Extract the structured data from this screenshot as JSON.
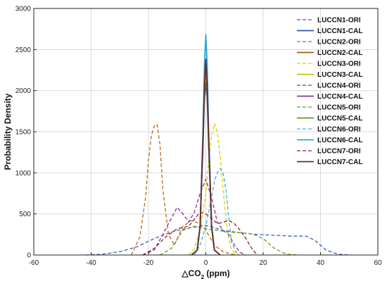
{
  "chart_data": {
    "type": "line",
    "title": "",
    "xlabel": "△CO",
    "xlabel_sub": "2",
    "xlabel_suffix": " (ppm)",
    "ylabel": "Probability Density",
    "xlim": [
      -60,
      60
    ],
    "ylim": [
      0,
      3000
    ],
    "xticks": [
      -60,
      -40,
      -20,
      0,
      20,
      40,
      60
    ],
    "yticks": [
      0,
      500,
      1000,
      1500,
      2000,
      2500,
      3000
    ],
    "xtick_labels": [
      "-60",
      "-40",
      "-20",
      "0",
      "20",
      "40",
      "60"
    ],
    "ytick_labels": [
      "0",
      "500",
      "1000",
      "1500",
      "2000",
      "2500",
      "3000"
    ],
    "grid": true,
    "legend_position": "top-right",
    "series": [
      {
        "name": "LUCCN1-ORI",
        "color": "#3b5fc0",
        "dash": true,
        "x": [
          -42,
          -36,
          -30,
          -24,
          -18,
          -12,
          -6,
          0,
          6,
          12,
          18,
          24,
          30,
          35,
          38,
          42,
          46,
          50
        ],
        "y": [
          0,
          10,
          40,
          100,
          200,
          280,
          330,
          360,
          300,
          270,
          250,
          240,
          230,
          230,
          180,
          60,
          10,
          0
        ]
      },
      {
        "name": "LUCCN1-CAL",
        "color": "#2f4fb0",
        "dash": false,
        "x": [
          -5,
          -3,
          -2,
          -1,
          -0.5,
          0,
          0.5,
          1,
          2,
          3,
          5
        ],
        "y": [
          0,
          60,
          350,
          1300,
          1900,
          2100,
          1900,
          1300,
          350,
          60,
          0
        ]
      },
      {
        "name": "LUCCN2-ORI",
        "color": "#c06a10",
        "dash": true,
        "x": [
          -26,
          -23,
          -21,
          -20,
          -19,
          -18,
          -17,
          -16,
          -15,
          -13,
          -11,
          -8,
          -5,
          -2,
          0,
          3,
          6,
          9,
          12,
          15
        ],
        "y": [
          0,
          220,
          700,
          1150,
          1450,
          1570,
          1590,
          1350,
          800,
          250,
          120,
          350,
          420,
          380,
          300,
          120,
          40,
          10,
          0,
          0
        ]
      },
      {
        "name": "LUCCN2-CAL",
        "color": "#a55a12",
        "dash": false,
        "x": [
          -5,
          -3,
          -2,
          -1,
          -0.5,
          0,
          0.5,
          1,
          2,
          3,
          5
        ],
        "y": [
          0,
          60,
          350,
          1400,
          2000,
          2300,
          2000,
          1400,
          350,
          60,
          0
        ]
      },
      {
        "name": "LUCCN3-ORI",
        "color": "#d6d300",
        "dash": true,
        "x": [
          -6,
          -4,
          -2,
          0,
          1,
          2,
          3,
          4,
          5,
          6,
          7,
          8,
          9,
          11
        ],
        "y": [
          0,
          80,
          300,
          750,
          1150,
          1450,
          1600,
          1500,
          1200,
          800,
          450,
          200,
          60,
          0
        ]
      },
      {
        "name": "LUCCN3-CAL",
        "color": "#c8c800",
        "dash": false,
        "x": [
          -5,
          -3,
          -2,
          -1,
          -0.5,
          0,
          0.5,
          1,
          2,
          3,
          5
        ],
        "y": [
          0,
          60,
          350,
          1400,
          2000,
          2250,
          2000,
          1400,
          350,
          60,
          0
        ]
      },
      {
        "name": "LUCCN4-ORI",
        "color": "#8a2ca0",
        "dash": true,
        "x": [
          -22,
          -18,
          -15,
          -12,
          -10,
          -8,
          -6,
          -4,
          -2,
          0,
          2,
          4,
          6,
          8,
          10,
          12,
          14
        ],
        "y": [
          0,
          60,
          250,
          450,
          580,
          500,
          400,
          520,
          750,
          920,
          700,
          400,
          300,
          250,
          120,
          30,
          0
        ]
      },
      {
        "name": "LUCCN4-CAL",
        "color": "#7a3aa8",
        "dash": false,
        "x": [
          -5,
          -3,
          -2,
          -1,
          -0.5,
          0,
          0.5,
          1,
          2,
          3,
          5
        ],
        "y": [
          0,
          60,
          350,
          1400,
          2000,
          2350,
          2000,
          1400,
          350,
          60,
          0
        ]
      },
      {
        "name": "LUCCN5-ORI",
        "color": "#6aa020",
        "dash": true,
        "x": [
          -16,
          -12,
          -8,
          -4,
          0,
          4,
          8,
          12,
          16,
          20,
          24,
          28,
          32
        ],
        "y": [
          0,
          80,
          300,
          350,
          320,
          300,
          280,
          270,
          260,
          200,
          80,
          10,
          0
        ]
      },
      {
        "name": "LUCCN5-CAL",
        "color": "#5c9a1c",
        "dash": false,
        "x": [
          -5,
          -3,
          -2,
          -1,
          -0.5,
          0,
          0.5,
          1,
          2,
          3,
          5
        ],
        "y": [
          0,
          60,
          350,
          1400,
          2000,
          2300,
          2000,
          1400,
          350,
          60,
          0
        ]
      },
      {
        "name": "LUCCN6-ORI",
        "color": "#3fb0e0",
        "dash": true,
        "x": [
          -4,
          -2,
          0,
          2,
          3,
          4,
          5,
          6,
          7,
          8,
          9,
          11
        ],
        "y": [
          0,
          120,
          350,
          700,
          900,
          1000,
          1050,
          1000,
          800,
          450,
          150,
          0
        ]
      },
      {
        "name": "LUCCN6-CAL",
        "color": "#2aa6d8",
        "dash": false,
        "x": [
          -5,
          -3,
          -2,
          -1,
          -0.5,
          0,
          0.5,
          1,
          2,
          3,
          5
        ],
        "y": [
          0,
          60,
          350,
          1500,
          2300,
          2680,
          2300,
          1500,
          350,
          60,
          0
        ]
      },
      {
        "name": "LUCCN7-ORI",
        "color": "#8a2030",
        "dash": true,
        "x": [
          -22,
          -18,
          -14,
          -10,
          -6,
          -2,
          0,
          2,
          4,
          6,
          8,
          10,
          12,
          14,
          16,
          18
        ],
        "y": [
          0,
          80,
          220,
          320,
          350,
          520,
          500,
          450,
          380,
          400,
          420,
          380,
          300,
          200,
          80,
          0
        ]
      },
      {
        "name": "LUCCN7-CAL",
        "color": "#6a2a2a",
        "dash": false,
        "x": [
          -5,
          -3,
          -2,
          -1,
          -0.5,
          0,
          0.5,
          1,
          2,
          3,
          5
        ],
        "y": [
          0,
          60,
          350,
          1400,
          2050,
          2380,
          2050,
          1400,
          350,
          60,
          0
        ]
      }
    ]
  }
}
